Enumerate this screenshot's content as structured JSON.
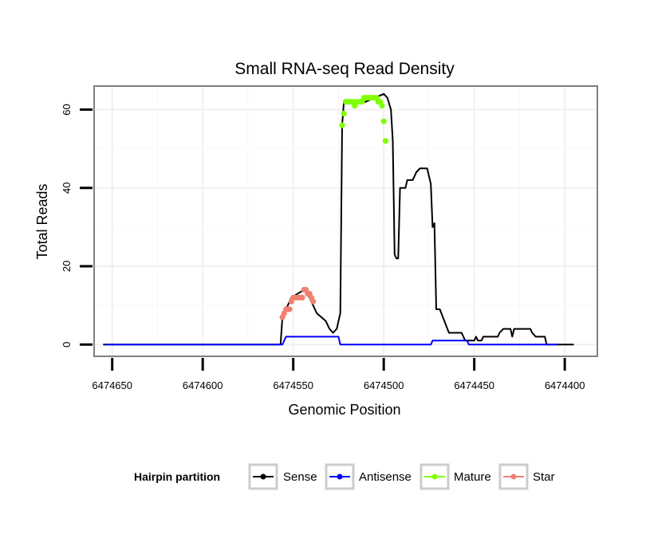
{
  "chart_data": {
    "type": "line",
    "title": "Small RNA-seq Read Density",
    "xlabel": "Genomic Position",
    "ylabel": "Total Reads",
    "x_reversed": true,
    "xlim": [
      6474660,
      6474382
    ],
    "ylim": [
      -3,
      66
    ],
    "x_ticks": [
      6474650,
      6474600,
      6474550,
      6474500,
      6474450,
      6474400
    ],
    "x_tick_labels": [
      "6474650",
      "6474600",
      "6474550",
      "6474500",
      "6474450",
      "6474400"
    ],
    "y_ticks": [
      0,
      20,
      40,
      60
    ],
    "y_tick_labels": [
      "0",
      "20",
      "40",
      "60"
    ],
    "grid": true,
    "legend": {
      "title": "Hairpin partition",
      "position": "bottom",
      "entries": [
        {
          "name": "Sense",
          "color": "#000000"
        },
        {
          "name": "Antisense",
          "color": "#0000ff"
        },
        {
          "name": "Mature",
          "color": "#7fff00"
        },
        {
          "name": "Star",
          "color": "#f08070"
        }
      ]
    },
    "series": [
      {
        "name": "Sense",
        "color": "#000000",
        "style": "line",
        "points": [
          [
            6474655,
            0
          ],
          [
            6474557,
            0
          ],
          [
            6474556,
            7
          ],
          [
            6474554,
            9
          ],
          [
            6474551,
            12
          ],
          [
            6474544,
            14
          ],
          [
            6474541,
            12
          ],
          [
            6474537,
            8
          ],
          [
            6474532,
            6
          ],
          [
            6474530,
            4
          ],
          [
            6474528,
            3
          ],
          [
            6474526,
            4
          ],
          [
            6474524,
            8
          ],
          [
            6474523,
            56
          ],
          [
            6474522,
            62
          ],
          [
            6474510,
            62
          ],
          [
            6474500,
            64
          ],
          [
            6474498,
            63
          ],
          [
            6474496,
            60
          ],
          [
            6474495,
            52
          ],
          [
            6474494,
            23
          ],
          [
            6474493,
            22
          ],
          [
            6474492,
            22
          ],
          [
            6474491,
            40
          ],
          [
            6474488,
            40
          ],
          [
            6474487,
            42
          ],
          [
            6474484,
            42
          ],
          [
            6474482,
            44
          ],
          [
            6474480,
            45
          ],
          [
            6474476,
            45
          ],
          [
            6474475,
            43
          ],
          [
            6474474,
            41
          ],
          [
            6474473,
            30
          ],
          [
            6474472,
            31
          ],
          [
            6474471,
            9
          ],
          [
            6474469,
            9
          ],
          [
            6474464,
            3
          ],
          [
            6474457,
            3
          ],
          [
            6474455,
            1
          ],
          [
            6474450,
            1
          ],
          [
            6474449,
            2
          ],
          [
            6474448,
            1
          ],
          [
            6474446,
            1
          ],
          [
            6474445,
            2
          ],
          [
            6474437,
            2
          ],
          [
            6474436,
            3
          ],
          [
            6474434,
            4
          ],
          [
            6474430,
            4
          ],
          [
            6474429,
            2
          ],
          [
            6474428,
            4
          ],
          [
            6474419,
            4
          ],
          [
            6474418,
            3
          ],
          [
            6474416,
            2
          ],
          [
            6474411,
            2
          ],
          [
            6474410,
            0
          ],
          [
            6474395,
            0
          ]
        ]
      },
      {
        "name": "Antisense",
        "color": "#0000ff",
        "style": "line",
        "points": [
          [
            6474654,
            0
          ],
          [
            6474556,
            0
          ],
          [
            6474554,
            2
          ],
          [
            6474525,
            2
          ],
          [
            6474524,
            0
          ],
          [
            6474474,
            0
          ],
          [
            6474473,
            1
          ],
          [
            6474454,
            1
          ],
          [
            6474453,
            0
          ],
          [
            6474404,
            0
          ]
        ]
      },
      {
        "name": "Mature",
        "color": "#7fff00",
        "style": "points",
        "points": [
          [
            6474523,
            56
          ],
          [
            6474522,
            59
          ],
          [
            6474521,
            62
          ],
          [
            6474520,
            62
          ],
          [
            6474519,
            62
          ],
          [
            6474518,
            62
          ],
          [
            6474517,
            62
          ],
          [
            6474516,
            61
          ],
          [
            6474515,
            62
          ],
          [
            6474514,
            62
          ],
          [
            6474513,
            62
          ],
          [
            6474512,
            62
          ],
          [
            6474511,
            63
          ],
          [
            6474510,
            63
          ],
          [
            6474509,
            63
          ],
          [
            6474508,
            63
          ],
          [
            6474507,
            63
          ],
          [
            6474506,
            63
          ],
          [
            6474505,
            63
          ],
          [
            6474504,
            63
          ],
          [
            6474503,
            62
          ],
          [
            6474502,
            62
          ],
          [
            6474501,
            61
          ],
          [
            6474500,
            57
          ],
          [
            6474499,
            52
          ]
        ]
      },
      {
        "name": "Star",
        "color": "#f08070",
        "style": "points",
        "points": [
          [
            6474556,
            7
          ],
          [
            6474555,
            8
          ],
          [
            6474554,
            9
          ],
          [
            6474553,
            9
          ],
          [
            6474552,
            9
          ],
          [
            6474551,
            11
          ],
          [
            6474550,
            12
          ],
          [
            6474549,
            12
          ],
          [
            6474548,
            12
          ],
          [
            6474547,
            12
          ],
          [
            6474546,
            12
          ],
          [
            6474545,
            12
          ],
          [
            6474544,
            14
          ],
          [
            6474543,
            14
          ],
          [
            6474542,
            13
          ],
          [
            6474541,
            13
          ],
          [
            6474540,
            12
          ],
          [
            6474539,
            11
          ]
        ]
      }
    ]
  }
}
